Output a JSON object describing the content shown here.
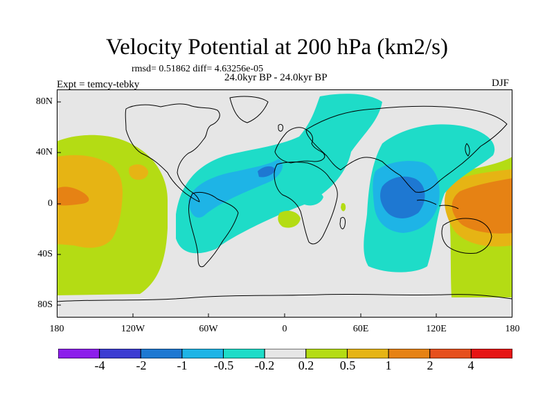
{
  "title": "Velocity Potential at 200 hPa (km2/s)",
  "stats": "rmsd= 0.51862 diff= 4.63256e-05",
  "experiment": "Expt = temcy-tebky",
  "period": "24.0kyr BP - 24.0kyr BP",
  "season": "DJF",
  "map": {
    "projection": "cylindrical equidistant",
    "lon_range": [
      -180,
      180
    ],
    "lat_range": [
      -90,
      90
    ],
    "background_color": "#e6e6e6",
    "lat_labels": [
      "80N",
      "40N",
      "0",
      "40S",
      "80S"
    ],
    "lon_labels": [
      "180",
      "120W",
      "60W",
      "0",
      "60E",
      "120E",
      "180"
    ]
  },
  "colorbar": {
    "colors": [
      "#8c1eeb",
      "#3c3cd2",
      "#1e78d2",
      "#1eb4e6",
      "#1edcc8",
      "#e6e6e6",
      "#b4dc14",
      "#e6b414",
      "#e68214",
      "#e6501e",
      "#e61414"
    ],
    "labels": [
      "-4",
      "-2",
      "-1",
      "-0.5",
      "-0.2",
      "0.2",
      "0.5",
      "1",
      "2",
      "4"
    ]
  }
}
